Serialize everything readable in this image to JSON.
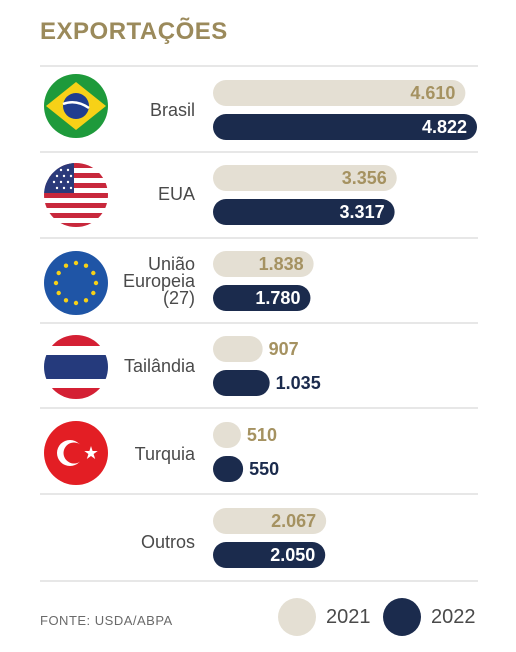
{
  "title": "EXPORTAÇÕES",
  "source": "FONTE: USDA/ABPA",
  "colors": {
    "title": "#9b8a5b",
    "bar_2021": "#e4dfd3",
    "bar_2022": "#1b2b4d",
    "label_2021": "#a59261",
    "label_2022_inside": "#ffffff",
    "label_2022_outside": "#1b2b4d",
    "divider": "#cfcfcf"
  },
  "legend": [
    {
      "label": "2021",
      "color": "#e4dfd3"
    },
    {
      "label": "2022",
      "color": "#1b2b4d"
    }
  ],
  "chart_data": {
    "type": "bar",
    "orientation": "horizontal",
    "title": "EXPORTAÇÕES",
    "categories": [
      "Brasil",
      "EUA",
      "União Europeia (27)",
      "Tailândia",
      "Turquia",
      "Outros"
    ],
    "category_lines": [
      [
        "Brasil"
      ],
      [
        "EUA"
      ],
      [
        "União",
        "Europeia",
        "(27)"
      ],
      [
        "Tailândia"
      ],
      [
        "Turquia"
      ],
      [
        "Outros"
      ]
    ],
    "category_icons": [
      "brazil-flag-icon",
      "usa-flag-icon",
      "eu-flag-icon",
      "thailand-flag-icon",
      "turkey-flag-icon",
      ""
    ],
    "series": [
      {
        "name": "2021",
        "values": [
          4610,
          3356,
          1838,
          907,
          510,
          2067
        ],
        "labels": [
          "4.610",
          "3.356",
          "1.838",
          "907",
          "510",
          "2.067"
        ]
      },
      {
        "name": "2022",
        "values": [
          4822,
          3317,
          1780,
          1035,
          550,
          2050
        ],
        "labels": [
          "4.822",
          "3.317",
          "1.780",
          "1.035",
          "550",
          "2.050"
        ]
      }
    ],
    "legend_position": "bottom-right",
    "grid": false
  }
}
